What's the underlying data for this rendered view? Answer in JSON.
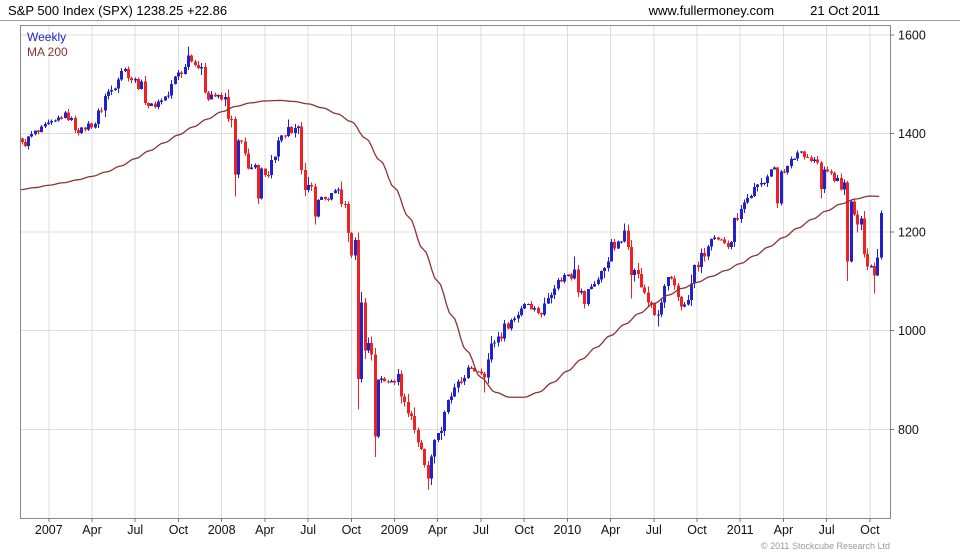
{
  "header": {
    "title": "S&P 500 Index (SPX) 1238.25 +22.86",
    "website": "www.fullermoney.com",
    "date": "21 Oct 2011"
  },
  "legend": {
    "weekly": "Weekly",
    "ma": "MA 200"
  },
  "footer": {
    "copyright": "© 2011 Stockcube Research Ltd"
  },
  "colors": {
    "up": "#2222cc",
    "down": "#ee2222",
    "ma_line": "#8b3333",
    "grid": "#dcdcdc",
    "axis_border": "#888888",
    "tick": "#777777",
    "label_text": "#111111"
  },
  "chart_data": {
    "type": "candlestick",
    "timeframe": "weekly",
    "title": "S&P 500 Index (SPX)",
    "last_price": 1238.25,
    "change": "+22.86",
    "ylim": [
      620,
      1620
    ],
    "yticks": [
      800,
      1000,
      1200,
      1400,
      1600
    ],
    "x_start_month": "2006-11",
    "months_total": 60.4,
    "months_span": 59.65,
    "weeks": 259,
    "xticks": [
      {
        "m": 2,
        "label": "2007"
      },
      {
        "m": 5,
        "label": "Apr"
      },
      {
        "m": 8,
        "label": "Jul"
      },
      {
        "m": 11,
        "label": "Oct"
      },
      {
        "m": 14,
        "label": "2008"
      },
      {
        "m": 17,
        "label": "Apr"
      },
      {
        "m": 20,
        "label": "Jul"
      },
      {
        "m": 23,
        "label": "Oct"
      },
      {
        "m": 26,
        "label": "2009"
      },
      {
        "m": 29,
        "label": "Apr"
      },
      {
        "m": 32,
        "label": "Jul"
      },
      {
        "m": 35,
        "label": "Oct"
      },
      {
        "m": 38,
        "label": "2010"
      },
      {
        "m": 41,
        "label": "Apr"
      },
      {
        "m": 44,
        "label": "Jul"
      },
      {
        "m": 47,
        "label": "Oct"
      },
      {
        "m": 50,
        "label": "2011"
      },
      {
        "m": 53,
        "label": "Apr"
      },
      {
        "m": 56,
        "label": "Jul"
      },
      {
        "m": 59,
        "label": "Oct"
      }
    ],
    "monthly_anchor_closes": [
      1378,
      1401,
      1418,
      1438,
      1407,
      1421,
      1482,
      1531,
      1503,
      1455,
      1474,
      1527,
      1549,
      1481,
      1468,
      1378,
      1330,
      1323,
      1386,
      1400,
      1280,
      1267,
      1283,
      1166,
      969,
      896,
      903,
      826,
      735,
      798,
      873,
      919,
      919,
      987,
      1021,
      1057,
      1036,
      1096,
      1115,
      1074,
      1104,
      1169,
      1187,
      1089,
      1031,
      1102,
      1049,
      1141,
      1183,
      1181,
      1258,
      1286,
      1327,
      1326,
      1364,
      1345,
      1321,
      1292,
      1219,
      1131,
      1238
    ],
    "ma200_monthly": [
      1286,
      1290,
      1295,
      1300,
      1306,
      1313,
      1322,
      1334,
      1349,
      1365,
      1381,
      1397,
      1413,
      1429,
      1444,
      1455,
      1462,
      1466,
      1467,
      1465,
      1460,
      1452,
      1440,
      1424,
      1390,
      1345,
      1290,
      1230,
      1165,
      1100,
      1030,
      960,
      905,
      875,
      865,
      865,
      875,
      895,
      918,
      942,
      966,
      990,
      1013,
      1035,
      1055,
      1072,
      1086,
      1098,
      1110,
      1122,
      1136,
      1152,
      1170,
      1189,
      1208,
      1226,
      1243,
      1257,
      1267,
      1273,
      1272
    ],
    "spike_lows": [
      [
        14.8,
        1272
      ],
      [
        16.3,
        1257
      ],
      [
        20.4,
        1215
      ],
      [
        23.3,
        840
      ],
      [
        24.6,
        744
      ],
      [
        28.15,
        677
      ],
      [
        32.25,
        875
      ],
      [
        39.15,
        1045
      ],
      [
        42.3,
        1065
      ],
      [
        44.05,
        1008
      ],
      [
        52.4,
        1249
      ],
      [
        55.6,
        1268
      ],
      [
        57.25,
        1101
      ],
      [
        59.1,
        1075
      ]
    ],
    "spike_highs": [
      [
        11.5,
        1576
      ],
      [
        18.6,
        1428
      ],
      [
        38.4,
        1150
      ],
      [
        41.9,
        1217
      ]
    ],
    "volatility": {
      "base": 9,
      "scale": 0.5,
      "cap": 60
    }
  }
}
